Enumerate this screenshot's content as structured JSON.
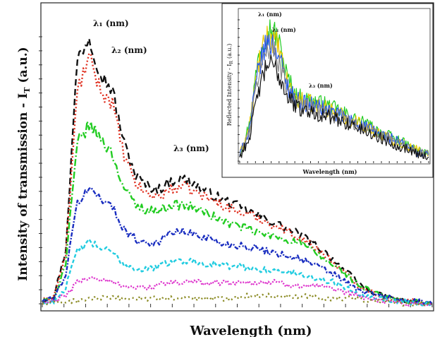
{
  "chart_data": [
    {
      "type": "line",
      "xlabel": "Wavelength  (nm)",
      "ylabel": "Intensity of transmission - I",
      "ylabel_subscript": "T",
      "ylabel_unit": "(a.u.)",
      "annotations": [
        {
          "label": "λ₁ (nm)"
        },
        {
          "label": "λ₂ (nm)"
        },
        {
          "label": "λ₃ (nm)"
        }
      ],
      "x": [
        0,
        0.03,
        0.06,
        0.09,
        0.12,
        0.15,
        0.18,
        0.21,
        0.24,
        0.27,
        0.3,
        0.33,
        0.36,
        0.39,
        0.42,
        0.45,
        0.48,
        0.51,
        0.54,
        0.57,
        0.6,
        0.63,
        0.66,
        0.69,
        0.72,
        0.75,
        0.78,
        0.81,
        0.84,
        0.87,
        0.9,
        0.93,
        0.96,
        1.0
      ],
      "ylim": [
        0,
        1
      ],
      "series": [
        {
          "color": "#111111",
          "dash": "9,5",
          "values": [
            0.01,
            0.03,
            0.2,
            0.92,
            1.0,
            0.86,
            0.8,
            0.6,
            0.48,
            0.44,
            0.43,
            0.46,
            0.47,
            0.45,
            0.42,
            0.4,
            0.38,
            0.36,
            0.34,
            0.32,
            0.3,
            0.28,
            0.26,
            0.23,
            0.2,
            0.16,
            0.12,
            0.08,
            0.05,
            0.03,
            0.02,
            0.01,
            0.01,
            0.0
          ]
        },
        {
          "color": "#e03020",
          "dash": "2,3",
          "values": [
            0.01,
            0.03,
            0.18,
            0.8,
            0.92,
            0.8,
            0.75,
            0.55,
            0.45,
            0.41,
            0.4,
            0.43,
            0.44,
            0.42,
            0.4,
            0.38,
            0.36,
            0.34,
            0.33,
            0.31,
            0.29,
            0.27,
            0.25,
            0.22,
            0.19,
            0.15,
            0.11,
            0.07,
            0.05,
            0.03,
            0.02,
            0.01,
            0.01,
            0.0
          ]
        },
        {
          "color": "#22cc22",
          "dash": "10,3,2,3",
          "values": [
            0.01,
            0.02,
            0.15,
            0.6,
            0.67,
            0.62,
            0.56,
            0.43,
            0.37,
            0.35,
            0.35,
            0.37,
            0.37,
            0.36,
            0.34,
            0.32,
            0.3,
            0.29,
            0.27,
            0.26,
            0.25,
            0.24,
            0.23,
            0.2,
            0.17,
            0.14,
            0.11,
            0.07,
            0.05,
            0.03,
            0.02,
            0.01,
            0.01,
            0.0
          ]
        },
        {
          "color": "#1a2ec0",
          "dash": "6,2,2,2",
          "values": [
            0.01,
            0.02,
            0.11,
            0.38,
            0.43,
            0.4,
            0.36,
            0.28,
            0.24,
            0.23,
            0.23,
            0.27,
            0.27,
            0.26,
            0.25,
            0.23,
            0.22,
            0.22,
            0.21,
            0.2,
            0.19,
            0.18,
            0.17,
            0.15,
            0.13,
            0.11,
            0.08,
            0.05,
            0.04,
            0.03,
            0.02,
            0.01,
            0.01,
            0.0
          ]
        },
        {
          "color": "#22cce0",
          "dash": "5,3",
          "values": [
            0.0,
            0.01,
            0.06,
            0.2,
            0.23,
            0.21,
            0.19,
            0.15,
            0.13,
            0.13,
            0.14,
            0.16,
            0.16,
            0.16,
            0.15,
            0.15,
            0.14,
            0.14,
            0.13,
            0.13,
            0.12,
            0.12,
            0.11,
            0.1,
            0.09,
            0.08,
            0.06,
            0.04,
            0.03,
            0.02,
            0.01,
            0.01,
            0.0,
            0.0
          ]
        },
        {
          "color": "#dd33cc",
          "dash": "2,2",
          "values": [
            0.0,
            0.01,
            0.03,
            0.08,
            0.1,
            0.09,
            0.08,
            0.07,
            0.06,
            0.06,
            0.07,
            0.08,
            0.08,
            0.08,
            0.08,
            0.08,
            0.08,
            0.08,
            0.08,
            0.08,
            0.08,
            0.07,
            0.07,
            0.07,
            0.06,
            0.05,
            0.04,
            0.03,
            0.02,
            0.01,
            0.01,
            0.0,
            0.0,
            0.0
          ]
        },
        {
          "color": "#8a8a22",
          "dash": "2,4",
          "values": [
            0.0,
            0.0,
            0.01,
            0.01,
            0.02,
            0.02,
            0.02,
            0.02,
            0.02,
            0.02,
            0.02,
            0.02,
            0.02,
            0.02,
            0.02,
            0.02,
            0.02,
            0.03,
            0.03,
            0.03,
            0.03,
            0.03,
            0.03,
            0.03,
            0.02,
            0.02,
            0.02,
            0.02,
            0.01,
            0.01,
            0.01,
            0.0,
            0.0,
            0.0
          ]
        }
      ]
    },
    {
      "type": "line",
      "xlabel": "Wavelength  (nm)",
      "ylabel": "Reflected Intensity - I",
      "ylabel_subscript": "R",
      "ylabel_unit": "(a.u.)",
      "annotations": [
        {
          "label": "λ₁ (nm)"
        },
        {
          "label": "λ₂ (nm)"
        },
        {
          "label": "λ₃ (nm)"
        }
      ],
      "x": [
        0,
        0.05,
        0.1,
        0.15,
        0.2,
        0.25,
        0.3,
        0.35,
        0.4,
        0.45,
        0.5,
        0.55,
        0.6,
        0.65,
        0.7,
        0.75,
        0.8,
        0.85,
        0.9,
        0.95,
        1.0
      ],
      "ylim": [
        0,
        1
      ],
      "series": [
        {
          "color": "#22cc22",
          "values": [
            0.05,
            0.25,
            0.75,
            0.95,
            0.88,
            0.6,
            0.46,
            0.44,
            0.42,
            0.4,
            0.37,
            0.34,
            0.3,
            0.27,
            0.24,
            0.2,
            0.17,
            0.14,
            0.1,
            0.07,
            0.05
          ]
        },
        {
          "color": "#e8c800",
          "values": [
            0.04,
            0.23,
            0.7,
            0.9,
            0.82,
            0.56,
            0.44,
            0.42,
            0.4,
            0.38,
            0.35,
            0.32,
            0.29,
            0.26,
            0.22,
            0.19,
            0.16,
            0.13,
            0.1,
            0.07,
            0.05
          ]
        },
        {
          "color": "#2255ee",
          "values": [
            0.04,
            0.22,
            0.66,
            0.86,
            0.78,
            0.54,
            0.43,
            0.41,
            0.39,
            0.37,
            0.34,
            0.31,
            0.28,
            0.25,
            0.22,
            0.19,
            0.16,
            0.13,
            0.09,
            0.06,
            0.04
          ]
        },
        {
          "color": "#888888",
          "values": [
            0.03,
            0.2,
            0.62,
            0.82,
            0.74,
            0.52,
            0.41,
            0.39,
            0.37,
            0.35,
            0.32,
            0.3,
            0.27,
            0.24,
            0.21,
            0.18,
            0.15,
            0.12,
            0.09,
            0.06,
            0.04
          ]
        },
        {
          "color": "#111111",
          "values": [
            0.03,
            0.16,
            0.5,
            0.7,
            0.63,
            0.47,
            0.38,
            0.36,
            0.34,
            0.32,
            0.3,
            0.28,
            0.25,
            0.22,
            0.19,
            0.16,
            0.13,
            0.1,
            0.08,
            0.05,
            0.03
          ]
        }
      ]
    }
  ]
}
